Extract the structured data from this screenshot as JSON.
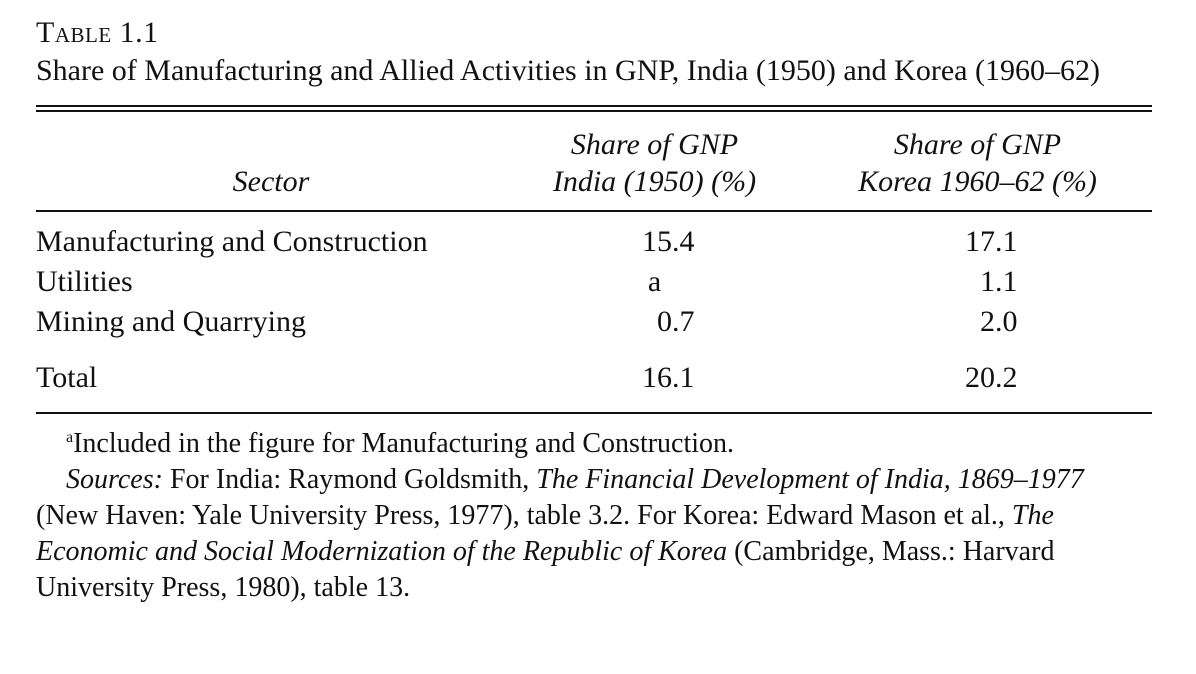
{
  "table": {
    "label": "Table 1.1",
    "title": "Share of Manufacturing and Allied Activities in GNP, India (1950) and Korea (1960–62)",
    "headers": {
      "sector": "Sector",
      "india_line1": "Share of GNP",
      "india_line2": "India (1950) (%)",
      "korea_line1": "Share of GNP",
      "korea_line2": "Korea 1960–62 (%)"
    },
    "rows": [
      {
        "sector": "Manufacturing and Construction",
        "india": "15.4",
        "korea": "17.1"
      },
      {
        "sector": "Utilities",
        "india": "a",
        "korea": "1.1"
      },
      {
        "sector": "Mining and Quarrying",
        "india": "0.7",
        "korea": "2.0"
      }
    ],
    "total": {
      "sector": "Total",
      "india": "16.1",
      "korea": "20.2"
    }
  },
  "footnotes": {
    "a_marker": "a",
    "a_text": "Included in the figure for Manufacturing and Construction.",
    "sources_label": "Sources:",
    "sources_part1": " For India: Raymond Goldsmith, ",
    "sources_title1": "The Financial Development of India, 1869–1977",
    "sources_part2": " (New Haven: Yale University Press, 1977), table 3.2. For Korea: Edward Mason et al., ",
    "sources_title2": "The Economic and Social Modernization of the Republic of Korea",
    "sources_part3": " (Cambridge, Mass.: Harvard University Press, 1980), table 13."
  }
}
